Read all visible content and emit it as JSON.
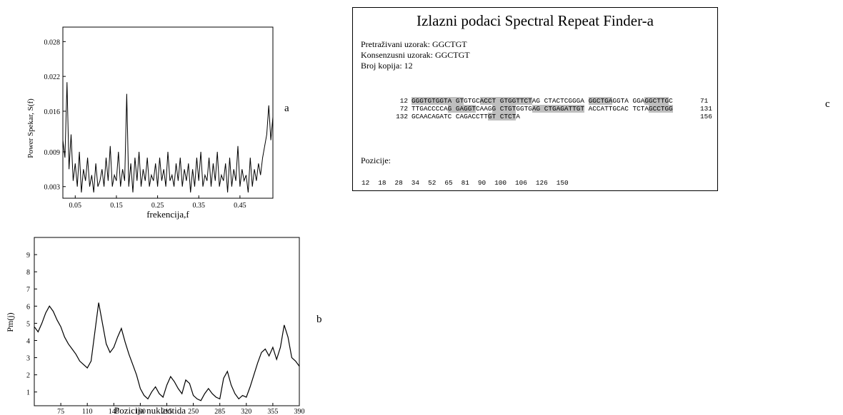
{
  "chart_data": [
    {
      "id": "a",
      "type": "line",
      "ylabel": "Power Spekar, S(f)",
      "xlabel": "frekencija,f",
      "xlim": [
        0.02,
        0.53
      ],
      "ylim": [
        0.001,
        0.0305
      ],
      "x_ticks": [
        "0.05",
        "0.15",
        "0.25",
        "0.35",
        "0.45"
      ],
      "y_ticks": [
        "0.003",
        "0.009",
        "0.016",
        "0.022",
        "0.028"
      ],
      "x_tick_values": [
        0.05,
        0.15,
        0.25,
        0.35,
        0.45
      ],
      "y_tick_values": [
        0.003,
        0.009,
        0.016,
        0.022,
        0.028
      ],
      "series": [
        {
          "x": [
            0.02,
            0.025,
            0.03,
            0.035,
            0.04,
            0.045,
            0.05,
            0.055,
            0.06,
            0.065,
            0.07,
            0.075,
            0.08,
            0.085,
            0.09,
            0.095,
            0.1,
            0.105,
            0.11,
            0.115,
            0.12,
            0.125,
            0.13,
            0.135,
            0.14,
            0.145,
            0.15,
            0.155,
            0.16,
            0.165,
            0.17,
            0.175,
            0.18,
            0.185,
            0.19,
            0.195,
            0.2,
            0.205,
            0.21,
            0.215,
            0.22,
            0.225,
            0.23,
            0.235,
            0.24,
            0.245,
            0.25,
            0.255,
            0.26,
            0.265,
            0.27,
            0.275,
            0.28,
            0.285,
            0.29,
            0.295,
            0.3,
            0.305,
            0.31,
            0.315,
            0.32,
            0.325,
            0.33,
            0.335,
            0.34,
            0.345,
            0.35,
            0.355,
            0.36,
            0.365,
            0.37,
            0.375,
            0.38,
            0.385,
            0.39,
            0.395,
            0.4,
            0.405,
            0.41,
            0.415,
            0.42,
            0.425,
            0.43,
            0.435,
            0.44,
            0.445,
            0.45,
            0.455,
            0.46,
            0.465,
            0.47,
            0.475,
            0.48,
            0.485,
            0.49,
            0.495,
            0.5,
            0.505,
            0.51,
            0.515,
            0.52,
            0.525,
            0.53
          ],
          "y": [
            0.011,
            0.008,
            0.021,
            0.006,
            0.012,
            0.004,
            0.007,
            0.003,
            0.009,
            0.002,
            0.006,
            0.004,
            0.008,
            0.003,
            0.005,
            0.002,
            0.007,
            0.003,
            0.004,
            0.006,
            0.003,
            0.008,
            0.004,
            0.01,
            0.003,
            0.005,
            0.004,
            0.009,
            0.003,
            0.006,
            0.004,
            0.019,
            0.003,
            0.007,
            0.002,
            0.008,
            0.004,
            0.009,
            0.003,
            0.006,
            0.004,
            0.008,
            0.003,
            0.005,
            0.004,
            0.007,
            0.003,
            0.008,
            0.004,
            0.006,
            0.003,
            0.009,
            0.004,
            0.005,
            0.003,
            0.007,
            0.004,
            0.008,
            0.003,
            0.006,
            0.004,
            0.007,
            0.002,
            0.006,
            0.003,
            0.008,
            0.004,
            0.009,
            0.003,
            0.005,
            0.004,
            0.008,
            0.003,
            0.007,
            0.004,
            0.009,
            0.003,
            0.005,
            0.004,
            0.007,
            0.002,
            0.008,
            0.003,
            0.006,
            0.004,
            0.01,
            0.003,
            0.006,
            0.004,
            0.005,
            0.002,
            0.008,
            0.003,
            0.006,
            0.004,
            0.007,
            0.005,
            0.008,
            0.01,
            0.012,
            0.017,
            0.011,
            0.015
          ]
        }
      ]
    },
    {
      "id": "b",
      "type": "line",
      "ylabel": "Pm(j)",
      "xlabel": "Pozicija nukleotida",
      "xlim": [
        40,
        390
      ],
      "ylim": [
        0.2,
        10
      ],
      "x_ticks": [
        "75",
        "110",
        "145",
        "180",
        "215",
        "250",
        "285",
        "320",
        "355",
        "390"
      ],
      "y_ticks": [
        "1",
        "2",
        "3",
        "4",
        "5",
        "6",
        "7",
        "8",
        "9"
      ],
      "x_tick_values": [
        75,
        110,
        145,
        180,
        215,
        250,
        285,
        320,
        355,
        390
      ],
      "y_tick_values": [
        1,
        2,
        3,
        4,
        5,
        6,
        7,
        8,
        9
      ],
      "series": [
        {
          "x": [
            40,
            45,
            50,
            55,
            60,
            65,
            70,
            75,
            80,
            85,
            90,
            95,
            100,
            105,
            110,
            115,
            120,
            125,
            130,
            135,
            140,
            145,
            150,
            155,
            160,
            165,
            170,
            175,
            180,
            185,
            190,
            195,
            200,
            205,
            210,
            215,
            220,
            225,
            230,
            235,
            240,
            245,
            250,
            255,
            260,
            265,
            270,
            275,
            280,
            285,
            290,
            295,
            300,
            305,
            310,
            315,
            320,
            325,
            330,
            335,
            340,
            345,
            350,
            355,
            360,
            365,
            370,
            375,
            380,
            385,
            390
          ],
          "y": [
            4.8,
            4.5,
            5.0,
            5.6,
            6.0,
            5.7,
            5.2,
            4.8,
            4.2,
            3.8,
            3.5,
            3.2,
            2.8,
            2.6,
            2.4,
            2.8,
            4.5,
            6.2,
            5.0,
            3.8,
            3.3,
            3.6,
            4.2,
            4.7,
            3.9,
            3.2,
            2.6,
            2.0,
            1.2,
            0.8,
            0.6,
            1.0,
            1.3,
            0.9,
            0.7,
            1.4,
            1.9,
            1.6,
            1.2,
            0.9,
            1.7,
            1.5,
            0.8,
            0.6,
            0.5,
            0.9,
            1.2,
            0.9,
            0.7,
            0.6,
            1.8,
            2.2,
            1.4,
            0.9,
            0.6,
            0.8,
            0.7,
            1.3,
            2.0,
            2.7,
            3.3,
            3.5,
            3.1,
            3.6,
            2.9,
            3.6,
            4.9,
            4.2,
            3.0,
            2.8,
            2.5
          ]
        }
      ]
    }
  ],
  "panel_c": {
    "title": "Izlazni podaci Spectral Repeat Finder-a",
    "meta": [
      "Pretraživani uzorak: GGCTGT",
      "Konsenzusni uzorak: GGCTGT",
      "Broj kopija: 12"
    ],
    "lines": [
      {
        "start": "12",
        "end": "71",
        "segments": [
          [
            "GGGTGTGGTA GT",
            true
          ],
          [
            "GTGC",
            false
          ],
          [
            "ACCT GTGGTTCT",
            true
          ],
          [
            "AG CTACTCGGGA ",
            false
          ],
          [
            "GGCTGA",
            true
          ],
          [
            "GGTA GGA",
            false
          ],
          [
            "GGCTTG",
            true
          ],
          [
            "C",
            false
          ]
        ]
      },
      {
        "start": "72",
        "end": "131",
        "segments": [
          [
            "TTGACCCCA",
            false
          ],
          [
            "G GAGGT",
            true
          ],
          [
            "CAAG",
            false
          ],
          [
            "G CTGT",
            true
          ],
          [
            "GGTG",
            false
          ],
          [
            "AG CTGAGATTGT",
            true
          ],
          [
            " ACCATTGCAC TCTA",
            false
          ],
          [
            "GCCTGG",
            true
          ]
        ]
      },
      {
        "start": "132",
        "end": "156",
        "segments": [
          [
            "GCAACAGATC CAGACCTT",
            false
          ],
          [
            "GT CTCT",
            true
          ],
          [
            "A",
            false
          ]
        ]
      }
    ],
    "positions_label": "Pozicije:",
    "positions": [
      "12",
      "18",
      "28",
      "34",
      "52",
      "65",
      "81",
      "90",
      "100",
      "106",
      "126",
      "150"
    ]
  },
  "panel_labels": {
    "a": "a",
    "b": "b",
    "c": "c"
  }
}
